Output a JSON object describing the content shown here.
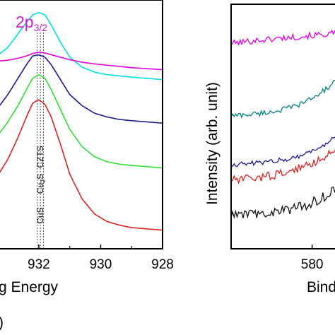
{
  "chart_data": [
    {
      "type": "line",
      "xlabel": "g Energy",
      "ylabel": "",
      "xlim": [
        933.3,
        928
      ],
      "x_ticks": [
        "932",
        "930",
        "928"
      ],
      "x_tick_values": [
        932,
        930,
        928
      ],
      "panel_label": ")",
      "peak_label": {
        "main": "2p",
        "sub": "3/2"
      },
      "markers": [
        {
          "label": "CuS",
          "x": 932.05
        },
        {
          "label": "Cu",
          "sub": "2",
          "label_after": "S",
          "x": 931.95
        },
        {
          "label": "CZTS",
          "x": 931.85
        }
      ],
      "series": [
        {
          "color": "#00e0e0",
          "x": [
            933.3,
            933.0,
            932.7,
            932.4,
            932.2,
            932.0,
            931.8,
            931.6,
            931.3,
            931.0,
            930.6,
            930.2,
            929.8,
            929.4,
            929.0,
            928.5,
            928.0
          ],
          "y": [
            78,
            81,
            86,
            91,
            94,
            95,
            94,
            90,
            83,
            77,
            73,
            71,
            70,
            69.5,
            69,
            68.5,
            68
          ]
        },
        {
          "color": "#e000e0",
          "x": [
            933.3,
            933.0,
            932.7,
            932.4,
            932.2,
            932.0,
            931.8,
            931.6,
            931.3,
            931.0,
            930.6,
            930.2,
            929.8,
            929.4,
            929.0,
            928.5,
            928.0
          ],
          "y": [
            75.5,
            75.8,
            76.5,
            77.5,
            78.5,
            79,
            78.7,
            78,
            77,
            76,
            75,
            74.3,
            73.8,
            73.3,
            72.8,
            72.4,
            72
          ]
        },
        {
          "color": "#1a1a8c",
          "x": [
            933.3,
            933.0,
            932.7,
            932.4,
            932.2,
            932.0,
            931.8,
            931.6,
            931.3,
            931.0,
            930.6,
            930.2,
            929.8,
            929.4,
            929.0,
            928.5,
            928.0
          ],
          "y": [
            57,
            62,
            68,
            74,
            77.5,
            78,
            77,
            74,
            68,
            62,
            57.5,
            54.5,
            53,
            52,
            51.5,
            51,
            50.5
          ]
        },
        {
          "color": "#33dd33",
          "x": [
            933.3,
            933.0,
            932.7,
            932.4,
            932.2,
            932.0,
            931.8,
            931.6,
            931.3,
            931.0,
            930.6,
            930.2,
            929.8,
            929.4,
            929.0,
            928.5,
            928.0
          ],
          "y": [
            46,
            51,
            57,
            64,
            68.5,
            70,
            68.5,
            64,
            56,
            48,
            41,
            37,
            35,
            34,
            33.5,
            33,
            32.5
          ]
        },
        {
          "color": "#dd2222",
          "x": [
            933.3,
            933.0,
            932.7,
            932.4,
            932.2,
            932.0,
            931.8,
            931.6,
            931.3,
            931.0,
            930.6,
            930.2,
            929.8,
            929.4,
            929.0,
            928.5,
            928.0
          ],
          "y": [
            30,
            36,
            44,
            53,
            58.5,
            60,
            58,
            53,
            42,
            30,
            20,
            14,
            11,
            9.5,
            8.5,
            8,
            7.5
          ]
        }
      ]
    },
    {
      "type": "line",
      "xlabel": "Bind",
      "ylabel": "Intensity (arb. unit)",
      "xlim": [
        575,
        581.5
      ],
      "x_ticks": [
        "580"
      ],
      "x_tick_values": [
        580
      ],
      "series": [
        {
          "color": "#e000e0",
          "x": [
            575,
            575.5,
            576,
            576.5,
            577,
            577.5,
            578,
            578.5,
            579,
            579.5,
            580,
            580.5,
            581,
            581.5
          ],
          "y": [
            105,
            105.5,
            106,
            106.5,
            106.8,
            107.2,
            107.6,
            108,
            108.3,
            108.7,
            109,
            109.4,
            109.8,
            110.5
          ]
        },
        {
          "color": "#008080",
          "x": [
            575,
            575.5,
            576,
            576.5,
            577,
            577.5,
            578,
            578.5,
            579,
            579.5,
            580,
            580.5,
            581,
            581.5
          ],
          "y": [
            68,
            68.3,
            68.6,
            69,
            69.5,
            70,
            70.8,
            71.8,
            73,
            74.8,
            77,
            79.5,
            82.5,
            86
          ]
        },
        {
          "color": "#1a1a8c",
          "x": [
            575,
            575.5,
            576,
            576.5,
            577,
            577.5,
            578,
            578.5,
            579,
            579.5,
            580,
            580.5,
            581,
            581.5
          ],
          "y": [
            43,
            43.2,
            43.5,
            43.8,
            44.2,
            44.7,
            45.3,
            46,
            47,
            48.3,
            50,
            52,
            54.5,
            57.5
          ]
        },
        {
          "color": "#dd2222",
          "x": [
            575,
            575.5,
            576,
            576.5,
            577,
            577.5,
            578,
            578.5,
            579,
            579.5,
            580,
            580.5,
            581,
            581.5
          ],
          "y": [
            35,
            35.3,
            35.7,
            36.2,
            36.8,
            37.5,
            38.3,
            39.3,
            40.5,
            42,
            43.8,
            46,
            48.5,
            51.5
          ]
        },
        {
          "color": "#111111",
          "x": [
            575,
            575.5,
            576,
            576.5,
            577,
            577.5,
            578,
            578.5,
            579,
            579.5,
            580,
            580.5,
            581,
            581.5
          ],
          "y": [
            17,
            17.2,
            17.5,
            17.8,
            18.2,
            18.6,
            19.2,
            19.9,
            20.8,
            22,
            23.5,
            25.5,
            28,
            31
          ]
        }
      ]
    }
  ]
}
